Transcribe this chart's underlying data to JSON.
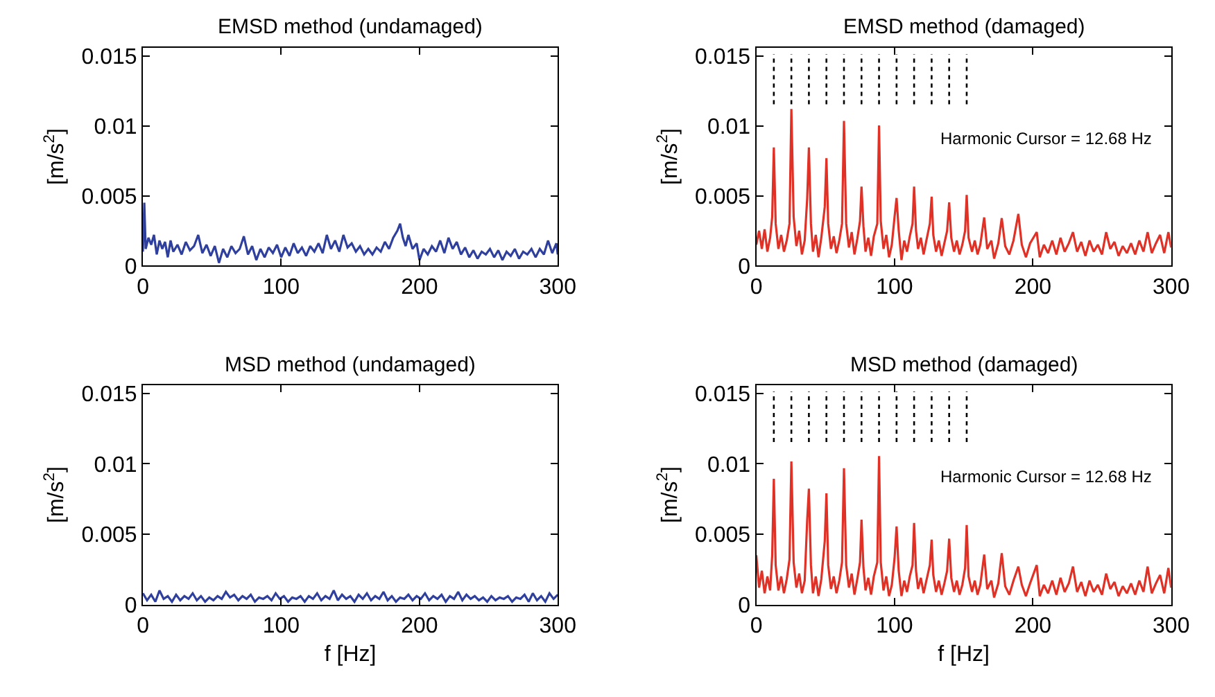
{
  "chart_data": [
    {
      "type": "line",
      "title": "EMSD method (undamaged)",
      "ylabel": "[m/s$^{2}$]",
      "xlim": [
        0,
        300
      ],
      "ylim": [
        0,
        0.0156
      ],
      "xticks": [
        0,
        100,
        200,
        300
      ],
      "yticks": [
        0,
        0.005,
        0.01,
        0.015
      ],
      "series": [
        {
          "color": "#2e3f9e",
          "x": [
            0,
            1,
            2,
            4,
            6,
            8,
            10,
            12,
            14,
            16,
            18,
            20,
            22,
            25,
            28,
            31,
            34,
            37,
            40,
            43,
            46,
            49,
            52,
            55,
            58,
            61,
            64,
            67,
            70,
            73,
            76,
            79,
            82,
            85,
            88,
            91,
            94,
            97,
            100,
            103,
            106,
            109,
            112,
            115,
            118,
            121,
            124,
            127,
            130,
            133,
            136,
            139,
            142,
            145,
            148,
            151,
            154,
            157,
            160,
            163,
            166,
            169,
            172,
            175,
            178,
            181,
            184,
            186,
            188,
            190,
            192,
            195,
            198,
            200,
            203,
            206,
            209,
            212,
            215,
            218,
            221,
            224,
            227,
            230,
            233,
            236,
            239,
            242,
            245,
            248,
            251,
            254,
            257,
            260,
            263,
            266,
            269,
            272,
            275,
            278,
            281,
            284,
            287,
            290,
            293,
            296,
            299,
            300
          ],
          "values": [
            0.001,
            0.0045,
            0.0012,
            0.002,
            0.0015,
            0.0022,
            0.0008,
            0.0018,
            0.0012,
            0.0017,
            0.0006,
            0.0018,
            0.001,
            0.0015,
            0.0008,
            0.0017,
            0.0011,
            0.0014,
            0.0022,
            0.0009,
            0.0015,
            0.0007,
            0.0014,
            0.0002,
            0.0012,
            0.0006,
            0.0014,
            0.0009,
            0.0012,
            0.0021,
            0.0008,
            0.0014,
            0.0004,
            0.0012,
            0.0006,
            0.0013,
            0.0009,
            0.0015,
            0.0006,
            0.0013,
            0.0007,
            0.0016,
            0.0009,
            0.0013,
            0.0007,
            0.0014,
            0.001,
            0.0016,
            0.0009,
            0.0022,
            0.0012,
            0.0018,
            0.001,
            0.0022,
            0.0013,
            0.0016,
            0.001,
            0.0014,
            0.0008,
            0.0012,
            0.0008,
            0.0013,
            0.001,
            0.0017,
            0.0012,
            0.002,
            0.0025,
            0.003,
            0.002,
            0.0014,
            0.0022,
            0.0012,
            0.0016,
            0.0004,
            0.0012,
            0.0008,
            0.0014,
            0.001,
            0.0018,
            0.0009,
            0.002,
            0.0012,
            0.0017,
            0.0008,
            0.0013,
            0.0006,
            0.0011,
            0.0005,
            0.001,
            0.0008,
            0.0012,
            0.0006,
            0.0011,
            0.0004,
            0.001,
            0.0007,
            0.0012,
            0.0005,
            0.001,
            0.0008,
            0.0012,
            0.0006,
            0.0012,
            0.0008,
            0.0018,
            0.0009,
            0.0016,
            0.0008
          ]
        }
      ]
    },
    {
      "type": "line",
      "title": "EMSD method (damaged)",
      "ylabel": "[m/s$^{2}$]",
      "xlim": [
        0,
        300
      ],
      "ylim": [
        0,
        0.0156
      ],
      "xticks": [
        0,
        100,
        200,
        300
      ],
      "yticks": [
        0,
        0.005,
        0.01,
        0.015
      ],
      "annotations": [
        "Harmonic Cursor = 12.68 Hz"
      ],
      "ref_lines": [
        {
          "axis": "x",
          "value": 12.68,
          "line_style": "dotted"
        },
        {
          "axis": "x",
          "value": 25.36,
          "line_style": "dotted"
        },
        {
          "axis": "x",
          "value": 38.04,
          "line_style": "dotted"
        },
        {
          "axis": "x",
          "value": 50.72,
          "line_style": "dotted"
        },
        {
          "axis": "x",
          "value": 63.4,
          "line_style": "dotted"
        },
        {
          "axis": "x",
          "value": 76.08,
          "line_style": "dotted"
        },
        {
          "axis": "x",
          "value": 88.76,
          "line_style": "dotted"
        },
        {
          "axis": "x",
          "value": 101.44,
          "line_style": "dotted"
        },
        {
          "axis": "x",
          "value": 114.12,
          "line_style": "dotted"
        },
        {
          "axis": "x",
          "value": 126.8,
          "line_style": "dotted"
        },
        {
          "axis": "x",
          "value": 139.48,
          "line_style": "dotted"
        },
        {
          "axis": "x",
          "value": 152.16,
          "line_style": "dotted"
        }
      ],
      "series": [
        {
          "color": "#e03127",
          "x": [
            0,
            2,
            4,
            6,
            8,
            10,
            11.5,
            12.68,
            14,
            16,
            18,
            20,
            22,
            24,
            25.36,
            27,
            29,
            31,
            33,
            35,
            36.8,
            38.04,
            39.5,
            41,
            43,
            45,
            47,
            49.5,
            50.72,
            52,
            54,
            56,
            58,
            60,
            62,
            63.4,
            65,
            67,
            69,
            71,
            73,
            75,
            76.08,
            77.5,
            79,
            81,
            83,
            85,
            87.5,
            88.76,
            90,
            92,
            94,
            96,
            98,
            100,
            101.44,
            103,
            105,
            107,
            109,
            111,
            113,
            114.12,
            115.5,
            117,
            119,
            121,
            123,
            125.5,
            126.8,
            128,
            130,
            132,
            134,
            136,
            138,
            139.48,
            141,
            143,
            145,
            147,
            149,
            151,
            152.16,
            153.5,
            156,
            158,
            160,
            162,
            164.8,
            167,
            170,
            172,
            175,
            177.5,
            180,
            183,
            186,
            189.5,
            192,
            195,
            198,
            202.8,
            205,
            208,
            211,
            214,
            217,
            220,
            223,
            226,
            229,
            232,
            235,
            238,
            241,
            244,
            247,
            250,
            253,
            256,
            259,
            262,
            265,
            268,
            271,
            274,
            277,
            280,
            283,
            286,
            289,
            292,
            295,
            298,
            300
          ],
          "values": [
            0.0015,
            0.0025,
            0.0012,
            0.0026,
            0.001,
            0.002,
            0.0035,
            0.00845,
            0.003,
            0.0012,
            0.0022,
            0.001,
            0.0018,
            0.003,
            0.0112,
            0.0035,
            0.0014,
            0.0025,
            0.0008,
            0.0018,
            0.0048,
            0.00845,
            0.003,
            0.001,
            0.0022,
            0.0006,
            0.002,
            0.0042,
            0.00768,
            0.003,
            0.0012,
            0.0021,
            0.0009,
            0.0018,
            0.003,
            0.01035,
            0.003,
            0.0013,
            0.0024,
            0.0008,
            0.0019,
            0.0032,
            0.00565,
            0.0028,
            0.001,
            0.002,
            0.0007,
            0.0021,
            0.003,
            0.01003,
            0.0032,
            0.0012,
            0.0022,
            0.0006,
            0.0015,
            0.0035,
            0.00484,
            0.0025,
            0.0004,
            0.0018,
            0.001,
            0.0021,
            0.003,
            0.00565,
            0.0025,
            0.0012,
            0.002,
            0.0008,
            0.0018,
            0.003,
            0.00494,
            0.0022,
            0.001,
            0.0018,
            0.0007,
            0.0016,
            0.0025,
            0.00452,
            0.002,
            0.001,
            0.0018,
            0.0008,
            0.0015,
            0.0025,
            0.00506,
            0.002,
            0.001,
            0.0018,
            0.0008,
            0.0015,
            0.00345,
            0.0012,
            0.0018,
            0.0005,
            0.0016,
            0.0034,
            0.0014,
            0.0008,
            0.0018,
            0.0037,
            0.0015,
            0.0006,
            0.0016,
            0.0024,
            0.0006,
            0.0015,
            0.0009,
            0.0018,
            0.0008,
            0.002,
            0.001,
            0.0016,
            0.0024,
            0.001,
            0.0017,
            0.0007,
            0.0018,
            0.001,
            0.0015,
            0.0008,
            0.0024,
            0.0012,
            0.0017,
            0.0007,
            0.0014,
            0.0009,
            0.0016,
            0.0008,
            0.0018,
            0.001,
            0.0024,
            0.0009,
            0.0016,
            0.0022,
            0.0009,
            0.0024,
            0.0013
          ]
        }
      ]
    },
    {
      "type": "line",
      "title": "MSD method (undamaged)",
      "xlabel": "f [Hz]",
      "ylabel": "[m/s$^{2}$]",
      "xlim": [
        0,
        300
      ],
      "ylim": [
        0,
        0.0156
      ],
      "xticks": [
        0,
        100,
        200,
        300
      ],
      "yticks": [
        0,
        0.005,
        0.01,
        0.015
      ],
      "series": [
        {
          "color": "#2e3f9e",
          "x": [
            0,
            3,
            6,
            9,
            12,
            15,
            18,
            21,
            24,
            27,
            30,
            33,
            36,
            39,
            42,
            45,
            48,
            51,
            54,
            57,
            60,
            63,
            66,
            69,
            72,
            75,
            78,
            81,
            84,
            87,
            90,
            93,
            96,
            99,
            102,
            105,
            108,
            111,
            114,
            117,
            120,
            123,
            126,
            129,
            132,
            135,
            138,
            141,
            144,
            147,
            150,
            153,
            156,
            159,
            162,
            165,
            168,
            171,
            174,
            177,
            180,
            183,
            186,
            189,
            192,
            195,
            198,
            201,
            204,
            207,
            210,
            213,
            216,
            219,
            222,
            225,
            228,
            231,
            234,
            237,
            240,
            243,
            246,
            249,
            252,
            255,
            258,
            261,
            264,
            267,
            270,
            273,
            276,
            279,
            282,
            285,
            288,
            291,
            294,
            297,
            300
          ],
          "values": [
            0.0008,
            0.0003,
            0.0007,
            0.0002,
            0.001,
            0.0004,
            0.0006,
            0.0002,
            0.0007,
            0.0003,
            0.0006,
            0.0004,
            0.0008,
            0.0003,
            0.0006,
            0.0002,
            0.0005,
            0.0003,
            0.0006,
            0.0004,
            0.0009,
            0.0005,
            0.0007,
            0.0003,
            0.0006,
            0.0004,
            0.0007,
            0.0002,
            0.0005,
            0.0004,
            0.0006,
            0.0003,
            0.0008,
            0.0004,
            0.0006,
            0.0002,
            0.0005,
            0.0004,
            0.0006,
            0.0002,
            0.0006,
            0.0004,
            0.0008,
            0.0003,
            0.0006,
            0.0004,
            0.001,
            0.0003,
            0.0007,
            0.0004,
            0.0006,
            0.0002,
            0.0007,
            0.0004,
            0.0008,
            0.0003,
            0.0006,
            0.0004,
            0.0009,
            0.0003,
            0.0006,
            0.0002,
            0.0005,
            0.0004,
            0.0007,
            0.0003,
            0.0006,
            0.0004,
            0.0008,
            0.0003,
            0.0006,
            0.0004,
            0.0007,
            0.0002,
            0.0006,
            0.0004,
            0.0009,
            0.0003,
            0.0007,
            0.0004,
            0.0006,
            0.0003,
            0.0005,
            0.0002,
            0.0006,
            0.0003,
            0.0005,
            0.0004,
            0.0006,
            0.0002,
            0.0005,
            0.0004,
            0.0007,
            0.0002,
            0.0008,
            0.0003,
            0.0006,
            0.0002,
            0.0008,
            0.0004,
            0.0007
          ]
        }
      ]
    },
    {
      "type": "line",
      "title": "MSD method (damaged)",
      "xlabel": "f [Hz]",
      "ylabel": "[m/s$^{2}$]",
      "xlim": [
        0,
        300
      ],
      "ylim": [
        0,
        0.0156
      ],
      "xticks": [
        0,
        100,
        200,
        300
      ],
      "yticks": [
        0,
        0.005,
        0.01,
        0.015
      ],
      "annotations": [
        "Harmonic Cursor = 12.68 Hz"
      ],
      "ref_lines": [
        {
          "axis": "x",
          "value": 12.68,
          "line_style": "dotted"
        },
        {
          "axis": "x",
          "value": 25.36,
          "line_style": "dotted"
        },
        {
          "axis": "x",
          "value": 38.04,
          "line_style": "dotted"
        },
        {
          "axis": "x",
          "value": 50.72,
          "line_style": "dotted"
        },
        {
          "axis": "x",
          "value": 63.4,
          "line_style": "dotted"
        },
        {
          "axis": "x",
          "value": 76.08,
          "line_style": "dotted"
        },
        {
          "axis": "x",
          "value": 88.76,
          "line_style": "dotted"
        },
        {
          "axis": "x",
          "value": 101.44,
          "line_style": "dotted"
        },
        {
          "axis": "x",
          "value": 114.12,
          "line_style": "dotted"
        },
        {
          "axis": "x",
          "value": 126.8,
          "line_style": "dotted"
        },
        {
          "axis": "x",
          "value": 139.48,
          "line_style": "dotted"
        },
        {
          "axis": "x",
          "value": 152.16,
          "line_style": "dotted"
        }
      ],
      "series": [
        {
          "color": "#e03127",
          "x": [
            0,
            2,
            4,
            6,
            8,
            10,
            11.5,
            12.68,
            14,
            16,
            18,
            20,
            22,
            24,
            25.36,
            27,
            29,
            31,
            33,
            35,
            36.8,
            38.04,
            39.5,
            41,
            43,
            45,
            47,
            49.5,
            50.72,
            52,
            54,
            56,
            58,
            60,
            62,
            63.4,
            65,
            67,
            69,
            71,
            73,
            75,
            76.08,
            77.5,
            79,
            81,
            83,
            85,
            87.5,
            88.76,
            90,
            92,
            94,
            96,
            98,
            100,
            101.44,
            103,
            105,
            107,
            109,
            111,
            113,
            114.12,
            115.5,
            117,
            119,
            121,
            123,
            125.5,
            126.8,
            128,
            130,
            132,
            134,
            136,
            138,
            139.48,
            141,
            143,
            145,
            147,
            149,
            151,
            152.16,
            153.5,
            156,
            158,
            160,
            162,
            164.8,
            167,
            170,
            172,
            175,
            177.5,
            180,
            183,
            186,
            189.5,
            192,
            195,
            198,
            202.8,
            205,
            208,
            211,
            214,
            217,
            220,
            223,
            226,
            229,
            232,
            235,
            238,
            241,
            244,
            247,
            250,
            253,
            256,
            259,
            262,
            265,
            268,
            271,
            274,
            277,
            280,
            283,
            286,
            289,
            292,
            295,
            298,
            300
          ],
          "values": [
            0.0035,
            0.0012,
            0.0024,
            0.0008,
            0.002,
            0.001,
            0.0035,
            0.00894,
            0.0028,
            0.001,
            0.002,
            0.0008,
            0.0018,
            0.0032,
            0.01016,
            0.003,
            0.0012,
            0.0022,
            0.0008,
            0.0017,
            0.006,
            0.00823,
            0.0028,
            0.0008,
            0.002,
            0.0006,
            0.0018,
            0.0045,
            0.0079,
            0.0028,
            0.0011,
            0.002,
            0.0008,
            0.0017,
            0.003,
            0.00968,
            0.0028,
            0.0012,
            0.0022,
            0.0007,
            0.0018,
            0.003,
            0.00603,
            0.0026,
            0.001,
            0.0019,
            0.0007,
            0.002,
            0.003,
            0.01055,
            0.003,
            0.001,
            0.002,
            0.0006,
            0.0014,
            0.0033,
            0.00555,
            0.0024,
            0.0006,
            0.0017,
            0.0009,
            0.002,
            0.0028,
            0.0058,
            0.0024,
            0.0011,
            0.0019,
            0.0008,
            0.0017,
            0.0028,
            0.00461,
            0.0021,
            0.0009,
            0.0017,
            0.0007,
            0.0015,
            0.0024,
            0.00468,
            0.0019,
            0.0009,
            0.0017,
            0.0007,
            0.0014,
            0.0026,
            0.00565,
            0.002,
            0.0009,
            0.0017,
            0.0007,
            0.0014,
            0.00355,
            0.0011,
            0.0017,
            0.0005,
            0.0015,
            0.00365,
            0.0013,
            0.0007,
            0.0017,
            0.0027,
            0.0014,
            0.0006,
            0.0015,
            0.0028,
            0.0006,
            0.0014,
            0.0008,
            0.0017,
            0.0007,
            0.0019,
            0.0009,
            0.0015,
            0.0027,
            0.0009,
            0.0016,
            0.0006,
            0.0017,
            0.0009,
            0.0014,
            0.0007,
            0.0022,
            0.0011,
            0.0016,
            0.0006,
            0.0013,
            0.0008,
            0.0015,
            0.0007,
            0.0017,
            0.0009,
            0.0027,
            0.0008,
            0.0015,
            0.0021,
            0.0008,
            0.0026,
            0.0012
          ]
        }
      ]
    }
  ]
}
